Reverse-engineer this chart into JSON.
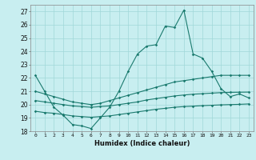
{
  "title": "",
  "xlabel": "Humidex (Indice chaleur)",
  "ylabel": "",
  "background_color": "#c8eef0",
  "line_color": "#1a7a6e",
  "grid_color": "#a0d8d8",
  "xlim": [
    -0.5,
    23.5
  ],
  "ylim": [
    18,
    27.5
  ],
  "yticks": [
    18,
    19,
    20,
    21,
    22,
    23,
    24,
    25,
    26,
    27
  ],
  "xticks": [
    0,
    1,
    2,
    3,
    4,
    5,
    6,
    7,
    8,
    9,
    10,
    11,
    12,
    13,
    14,
    15,
    16,
    17,
    18,
    19,
    20,
    21,
    22,
    23
  ],
  "series1": {
    "x": [
      0,
      1,
      2,
      3,
      4,
      5,
      6,
      7,
      8,
      9,
      10,
      11,
      12,
      13,
      14,
      15,
      16,
      17,
      18,
      19,
      20,
      21,
      22,
      23
    ],
    "y": [
      22.2,
      21.0,
      19.8,
      19.2,
      18.5,
      18.4,
      18.2,
      19.0,
      19.8,
      21.0,
      22.5,
      23.8,
      24.4,
      24.5,
      25.9,
      25.8,
      27.1,
      23.8,
      23.5,
      22.5,
      21.2,
      20.6,
      20.8,
      20.5
    ]
  },
  "series2": {
    "x": [
      0,
      1,
      2,
      3,
      4,
      5,
      6,
      7,
      8,
      9,
      10,
      11,
      12,
      13,
      14,
      15,
      16,
      17,
      18,
      19,
      20,
      21,
      22,
      23
    ],
    "y": [
      21.0,
      20.8,
      20.6,
      20.4,
      20.2,
      20.1,
      20.0,
      20.1,
      20.3,
      20.5,
      20.7,
      20.9,
      21.1,
      21.3,
      21.5,
      21.7,
      21.8,
      21.9,
      22.0,
      22.1,
      22.2,
      22.2,
      22.2,
      22.2
    ]
  },
  "series3": {
    "x": [
      0,
      1,
      2,
      3,
      4,
      5,
      6,
      7,
      8,
      9,
      10,
      11,
      12,
      13,
      14,
      15,
      16,
      17,
      18,
      19,
      20,
      21,
      22,
      23
    ],
    "y": [
      20.3,
      20.2,
      20.1,
      20.0,
      19.9,
      19.85,
      19.8,
      19.85,
      19.9,
      20.0,
      20.1,
      20.2,
      20.35,
      20.45,
      20.55,
      20.65,
      20.72,
      20.78,
      20.82,
      20.86,
      20.9,
      20.92,
      20.93,
      20.94
    ]
  },
  "series4": {
    "x": [
      0,
      1,
      2,
      3,
      4,
      5,
      6,
      7,
      8,
      9,
      10,
      11,
      12,
      13,
      14,
      15,
      16,
      17,
      18,
      19,
      20,
      21,
      22,
      23
    ],
    "y": [
      19.5,
      19.4,
      19.35,
      19.25,
      19.15,
      19.1,
      19.05,
      19.1,
      19.15,
      19.25,
      19.35,
      19.45,
      19.55,
      19.65,
      19.72,
      19.8,
      19.85,
      19.88,
      19.92,
      19.95,
      19.98,
      20.0,
      20.02,
      20.05
    ]
  }
}
